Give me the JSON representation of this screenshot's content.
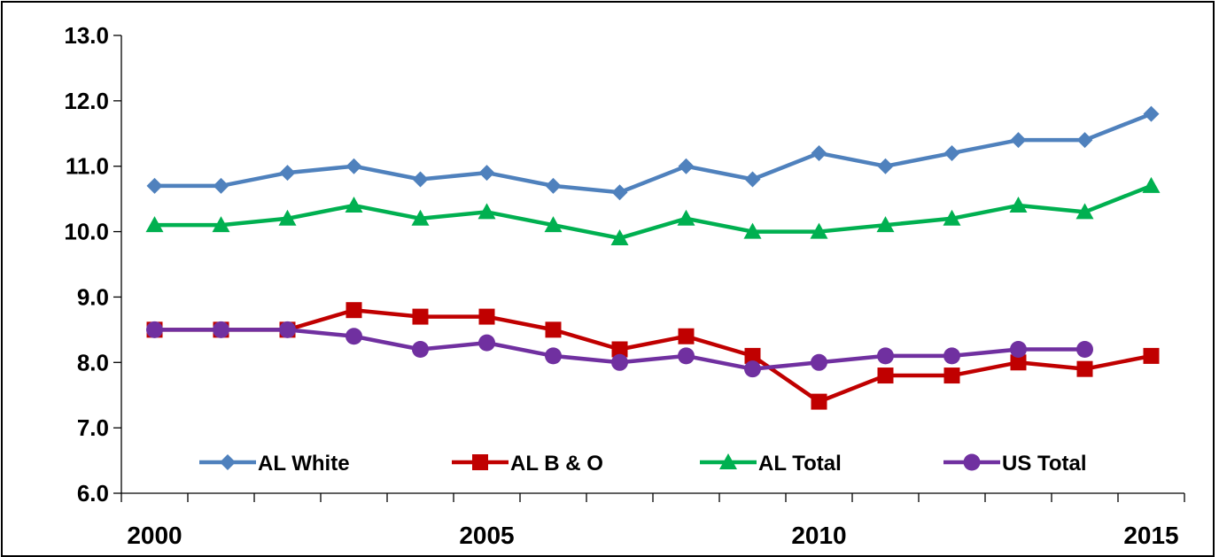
{
  "chart_data": {
    "type": "line",
    "title": "",
    "xlabel": "",
    "ylabel": "",
    "x": [
      2000,
      2001,
      2002,
      2003,
      2004,
      2005,
      2006,
      2007,
      2008,
      2009,
      2010,
      2011,
      2012,
      2013,
      2014,
      2015
    ],
    "x_tick_labels": [
      "2000",
      "2005",
      "2010",
      "2015"
    ],
    "y_tick_labels": [
      "6.0",
      "7.0",
      "8.0",
      "9.0",
      "10.0",
      "11.0",
      "12.0",
      "13.0"
    ],
    "ylim": [
      6.0,
      13.0
    ],
    "grid": false,
    "legend_position": "bottom-inside",
    "series": [
      {
        "name": "AL White",
        "color": "#4F81BD",
        "marker": "diamond",
        "values": [
          10.7,
          10.7,
          10.9,
          11.0,
          10.8,
          10.9,
          10.7,
          10.6,
          11.0,
          10.8,
          11.2,
          11.0,
          11.2,
          11.4,
          11.4,
          11.8
        ]
      },
      {
        "name": "AL B & O",
        "color": "#C00000",
        "marker": "square",
        "values": [
          8.5,
          8.5,
          8.5,
          8.8,
          8.7,
          8.7,
          8.5,
          8.2,
          8.4,
          8.1,
          7.4,
          7.8,
          7.8,
          8.0,
          7.9,
          8.1
        ]
      },
      {
        "name": "AL Total",
        "color": "#00B050",
        "marker": "triangle",
        "values": [
          10.1,
          10.1,
          10.2,
          10.4,
          10.2,
          10.3,
          10.1,
          9.9,
          10.2,
          10.0,
          10.0,
          10.1,
          10.2,
          10.4,
          10.3,
          10.7
        ]
      },
      {
        "name": "US Total",
        "color": "#7030A0",
        "marker": "circle",
        "values": [
          8.5,
          8.5,
          8.5,
          8.4,
          8.2,
          8.3,
          8.1,
          8.0,
          8.1,
          7.9,
          8.0,
          8.1,
          8.1,
          8.2,
          8.2,
          null
        ]
      }
    ]
  }
}
